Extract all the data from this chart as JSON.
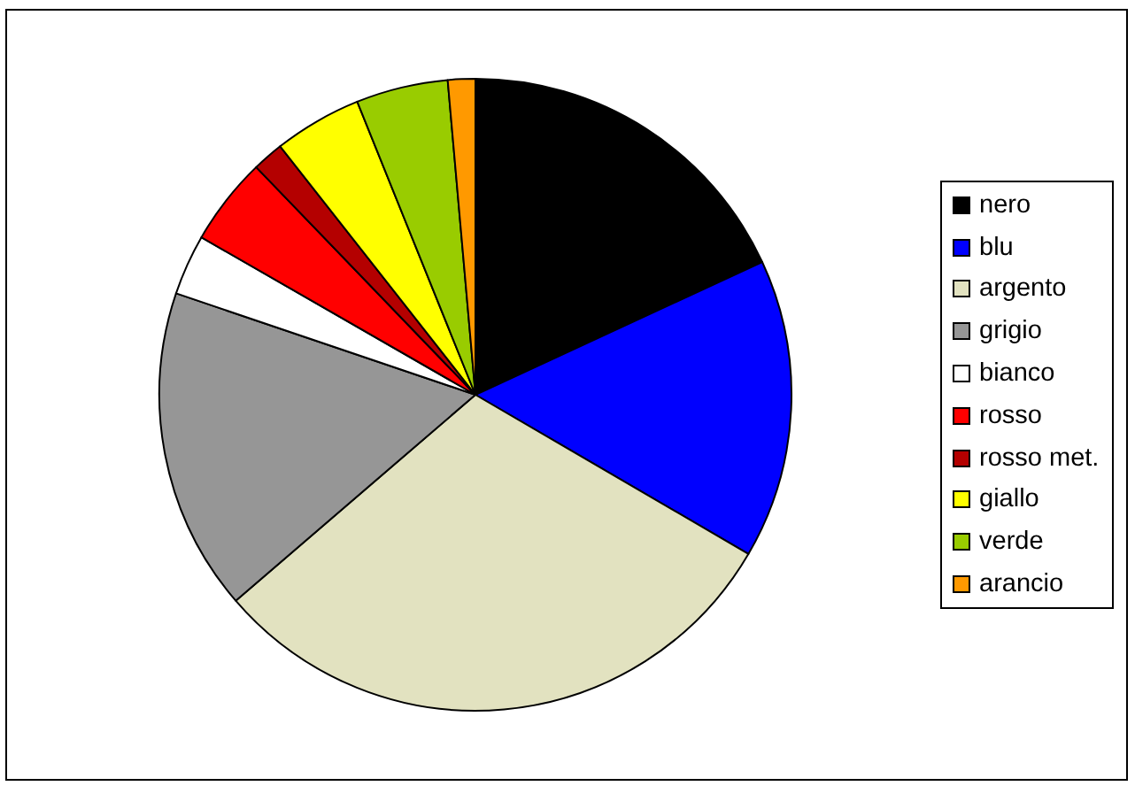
{
  "chart_data": {
    "type": "pie",
    "categories": [
      "nero",
      "blu",
      "argento",
      "grigio",
      "bianco",
      "rosso",
      "rosso met.",
      "giallo",
      "verde",
      "arancio"
    ],
    "values": [
      18.1,
      15.3,
      30.3,
      16.5,
      3.1,
      4.5,
      1.6,
      4.5,
      4.7,
      1.4
    ],
    "colors": [
      "#000000",
      "#0000ff",
      "#e2e2c0",
      "#969696",
      "#ffffff",
      "#ff0000",
      "#b40000",
      "#ffff00",
      "#99cc00",
      "#ff9900"
    ],
    "legend": "right"
  }
}
